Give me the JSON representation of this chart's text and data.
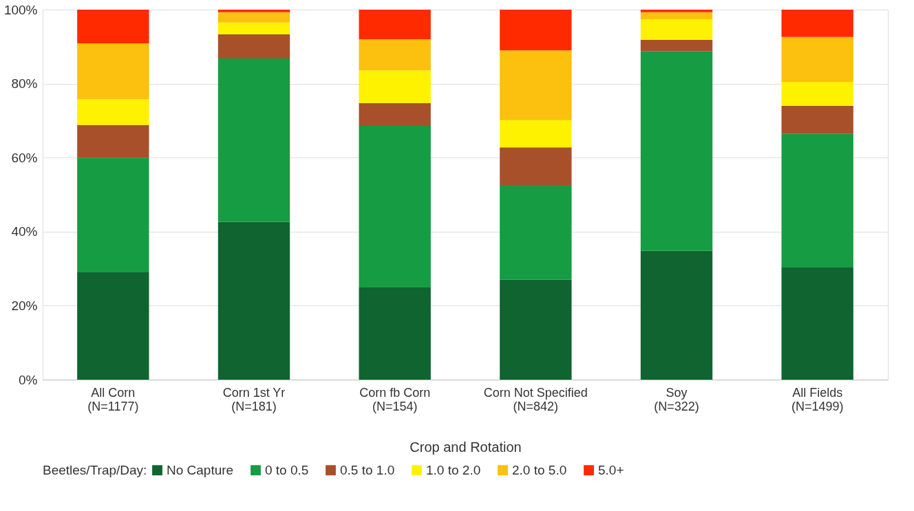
{
  "chart_data": {
    "type": "bar",
    "stacked": true,
    "xlabel": "Crop and Rotation",
    "legend_title": "Beetles/Trap/Day:",
    "legend": "bottom",
    "grid": "y",
    "categories": [
      "All Corn\n(N=1177)",
      "Corn 1st Yr\n(N=181)",
      "Corn fb Corn\n(N=154)",
      "Corn Not Specified\n(N=842)",
      "Soy\n(N=322)",
      "All Fields\n(N=1499)"
    ],
    "ylim": [
      0,
      100
    ],
    "yticks": [
      {
        "value": 0,
        "label": "0%"
      },
      {
        "value": 20,
        "label": "20%"
      },
      {
        "value": 40,
        "label": "40%"
      },
      {
        "value": 60,
        "label": "60%"
      },
      {
        "value": 80,
        "label": "80%"
      },
      {
        "value": 100,
        "label": "100%"
      }
    ],
    "series": [
      {
        "name": "No Capture",
        "color": "#0f6430",
        "values": [
          29.0,
          42.6,
          24.9,
          27.0,
          34.8,
          30.3
        ]
      },
      {
        "name": "0 to 0.5",
        "color": "#169c43",
        "values": [
          31.0,
          44.2,
          43.7,
          25.6,
          54.0,
          36.1
        ]
      },
      {
        "name": "0.5 to 1.0",
        "color": "#a8502a",
        "values": [
          8.8,
          6.5,
          6.1,
          10.2,
          3.0,
          7.6
        ]
      },
      {
        "name": "1.0 to 2.0",
        "color": "#fff200",
        "values": [
          7.0,
          3.2,
          8.9,
          7.3,
          5.6,
          6.5
        ]
      },
      {
        "name": "2.0 to 5.0",
        "color": "#fcc00e",
        "values": [
          15.1,
          2.8,
          8.4,
          18.9,
          1.9,
          12.1
        ]
      },
      {
        "name": "5.0+",
        "color": "#ff2a00",
        "values": [
          9.1,
          0.7,
          8.0,
          11.0,
          0.7,
          7.4
        ]
      }
    ]
  }
}
